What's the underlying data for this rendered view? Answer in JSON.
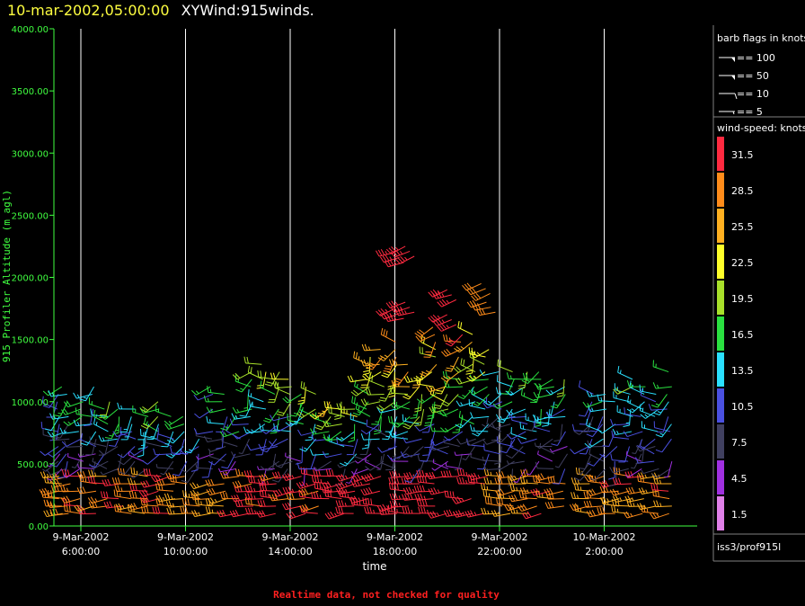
{
  "header": {
    "datetime": "10-mar-2002,05:00:00",
    "product": "XYWind:915winds."
  },
  "chart_data": {
    "type": "scatter",
    "subtype": "wind-barbs",
    "ylabel": "915 Profiler Altitude (m agl)",
    "xlabel": "time",
    "ylim": [
      0,
      4000
    ],
    "yticks": [
      "4000.00",
      "3500.00",
      "3000.00",
      "2500.00",
      "2000.00",
      "1500.00",
      "1000.00",
      "500.00",
      "0.00"
    ],
    "xticks": [
      {
        "date": "9-Mar-2002",
        "time": "6:00:00",
        "hour": 6
      },
      {
        "date": "9-Mar-2002",
        "time": "10:00:00",
        "hour": 10
      },
      {
        "date": "9-Mar-2002",
        "time": "14:00:00",
        "hour": 14
      },
      {
        "date": "9-Mar-2002",
        "time": "18:00:00",
        "hour": 18
      },
      {
        "date": "9-Mar-2002",
        "time": "22:00:00",
        "hour": 22
      },
      {
        "date": "10-Mar-2002",
        "time": "2:00:00",
        "hour": 26
      }
    ],
    "xlim_hours": [
      5.0,
      29.8
    ],
    "grid": true,
    "columns": [
      {
        "hour": 5.2,
        "top": 1200,
        "sf": 0.4
      },
      {
        "hour": 5.5,
        "top": 1150,
        "sf": 0.5
      },
      {
        "hour": 6.0,
        "top": 1050,
        "sf": 0.6
      },
      {
        "hour": 6.5,
        "top": 1120,
        "sf": 0.5
      },
      {
        "hour": 7.0,
        "top": 1000,
        "sf": 0.5
      },
      {
        "hour": 7.5,
        "top": 1050,
        "sf": 0.6
      },
      {
        "hour": 8.0,
        "top": 950,
        "sf": 0.5
      },
      {
        "hour": 8.5,
        "top": 900,
        "sf": 0.5
      },
      {
        "hour": 9.0,
        "top": 1000,
        "sf": 0.6
      },
      {
        "hour": 9.5,
        "top": 980,
        "sf": 0.5
      },
      {
        "hour": 10.0,
        "top": 900,
        "sf": 0.5
      },
      {
        "hour": 10.5,
        "top": 700,
        "sf": 0.4
      },
      {
        "hour": 11.0,
        "top": 1150,
        "sf": 0.4
      },
      {
        "hour": 11.5,
        "top": 1100,
        "sf": 0.5
      },
      {
        "hour": 12.0,
        "top": 900,
        "sf": 0.5
      },
      {
        "hour": 12.5,
        "top": 1250,
        "sf": 0.6
      },
      {
        "hour": 13.0,
        "top": 1300,
        "sf": 0.7
      },
      {
        "hour": 13.5,
        "top": 1280,
        "sf": 0.7
      },
      {
        "hour": 14.0,
        "top": 1200,
        "sf": 0.7
      },
      {
        "hour": 14.5,
        "top": 1150,
        "sf": 0.7
      },
      {
        "hour": 15.0,
        "top": 1100,
        "sf": 0.7
      },
      {
        "hour": 15.5,
        "top": 1050,
        "sf": 0.8
      },
      {
        "hour": 16.0,
        "top": 1000,
        "sf": 0.8
      },
      {
        "hour": 16.5,
        "top": 1000,
        "sf": 0.8
      },
      {
        "hour": 17.0,
        "top": 1400,
        "sf": 0.9
      },
      {
        "hour": 17.5,
        "top": 1450,
        "sf": 1.0
      },
      {
        "hour": 18.0,
        "top": 1500,
        "sf": 1.0
      },
      {
        "hour": 18.5,
        "top": 1300,
        "sf": 1.0
      },
      {
        "hour": 19.0,
        "top": 1350,
        "sf": 1.0
      },
      {
        "hour": 19.5,
        "top": 1600,
        "sf": 1.0
      },
      {
        "hour": 20.0,
        "top": 1250,
        "sf": 0.9
      },
      {
        "hour": 20.5,
        "top": 1550,
        "sf": 1.0
      },
      {
        "hour": 21.0,
        "top": 1600,
        "sf": 0.9
      },
      {
        "hour": 21.5,
        "top": 1500,
        "sf": 0.9
      },
      {
        "hour": 22.0,
        "top": 1250,
        "sf": 0.4
      },
      {
        "hour": 22.5,
        "top": 1250,
        "sf": 0.5
      },
      {
        "hour": 23.0,
        "top": 1250,
        "sf": 0.5
      },
      {
        "hour": 23.5,
        "top": 1250,
        "sf": 0.5
      },
      {
        "hour": 24.0,
        "top": 1200,
        "sf": 0.5
      },
      {
        "hour": 24.5,
        "top": 1200,
        "sf": 0.5
      },
      {
        "hour": 25.5,
        "top": 1150,
        "sf": 0.4
      },
      {
        "hour": 26.0,
        "top": 1100,
        "sf": 0.5
      },
      {
        "hour": 26.5,
        "top": 1000,
        "sf": 0.5
      },
      {
        "hour": 27.0,
        "top": 1200,
        "sf": 0.5
      },
      {
        "hour": 27.5,
        "top": 1150,
        "sf": 0.5
      },
      {
        "hour": 28.0,
        "top": 1100,
        "sf": 0.4
      },
      {
        "hour": 28.5,
        "top": 1250,
        "sf": 0.5
      }
    ],
    "upper_cells": [
      {
        "hour": 18.0,
        "alt": 2200,
        "speed": 33
      },
      {
        "hour": 18.4,
        "alt": 2250,
        "speed": 33
      },
      {
        "hour": 18.0,
        "alt": 1750,
        "speed": 33
      },
      {
        "hour": 18.4,
        "alt": 1800,
        "speed": 33
      },
      {
        "hour": 20.0,
        "alt": 1700,
        "speed": 33
      },
      {
        "hour": 20.0,
        "alt": 1900,
        "speed": 33
      },
      {
        "hour": 21.3,
        "alt": 1950,
        "speed": 29
      },
      {
        "hour": 21.5,
        "alt": 1800,
        "speed": 29
      }
    ],
    "legend": {
      "barb_title": "barb flags in knots",
      "barbs": [
        {
          "label": "== 100",
          "type": "pennant"
        },
        {
          "label": "== 50",
          "type": "pennant"
        },
        {
          "label": "== 10",
          "type": "full"
        },
        {
          "label": "== 5",
          "type": "half"
        }
      ],
      "speed_title": "wind-speed: knots",
      "speed_bins": [
        {
          "label": "31.5",
          "color": "#ff2a40"
        },
        {
          "label": "28.5",
          "color": "#ff8c1a"
        },
        {
          "label": "25.5",
          "color": "#ffb020"
        },
        {
          "label": "22.5",
          "color": "#ffff2a"
        },
        {
          "label": "19.5",
          "color": "#a8e02a"
        },
        {
          "label": "16.5",
          "color": "#2ae040"
        },
        {
          "label": "13.5",
          "color": "#2ae0ff"
        },
        {
          "label": "10.5",
          "color": "#4a50e0"
        },
        {
          "label": "7.5",
          "color": "#404060"
        },
        {
          "label": "4.5",
          "color": "#a030e0"
        },
        {
          "label": "1.5",
          "color": "#e080e8"
        }
      ],
      "source": "iss3/prof915l"
    },
    "footer_note": "Realtime data, not checked for quality"
  },
  "colors": {
    "axis": "#40ff40",
    "grid": "#ffffff",
    "footer": "#ff2020",
    "title_date": "#ffff40"
  }
}
